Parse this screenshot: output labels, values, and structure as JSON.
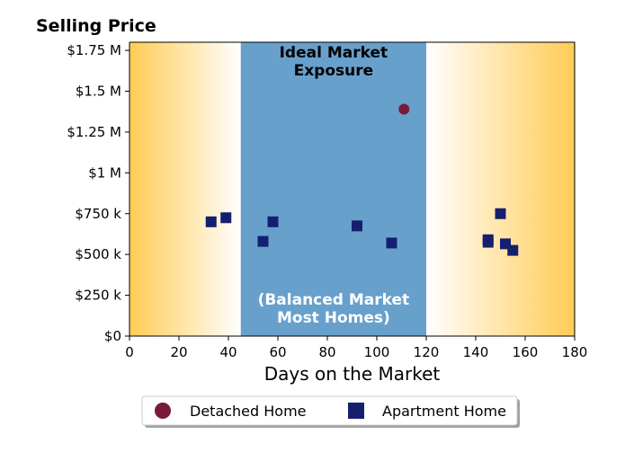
{
  "chart_data": {
    "type": "scatter",
    "title": "Selling Price",
    "xlabel": "Days on the Market",
    "ylabel": "",
    "xlim": [
      0,
      180
    ],
    "ylim": [
      0,
      1800000
    ],
    "x_ticks": [
      0,
      20,
      40,
      60,
      80,
      100,
      120,
      140,
      160,
      180
    ],
    "y_ticks": [
      {
        "value": 0,
        "label": "$0"
      },
      {
        "value": 250000,
        "label": "$250 k"
      },
      {
        "value": 500000,
        "label": "$500 k"
      },
      {
        "value": 750000,
        "label": "$750 k"
      },
      {
        "value": 1000000,
        "label": "$1 M"
      },
      {
        "value": 1250000,
        "label": "$1.25 M"
      },
      {
        "value": 1500000,
        "label": "$1.5 M"
      },
      {
        "value": 1750000,
        "label": "$1.75 M"
      }
    ],
    "grid": false,
    "legend_position": "bottom-center",
    "bands": {
      "ideal": {
        "x_start": 45,
        "x_end": 120,
        "color": "#68a0cc",
        "label_top": [
          "Ideal Market",
          "Exposure"
        ],
        "label_bottom": [
          "(Balanced Market",
          "Most Homes)"
        ]
      },
      "edge_color": "#ffcc55"
    },
    "series": [
      {
        "name": "Detached Home",
        "marker": "circle",
        "color": "#7a1a3a",
        "points": [
          [
            111,
            1390000
          ]
        ]
      },
      {
        "name": "Apartment Home",
        "marker": "square",
        "color": "#14206e",
        "points": [
          [
            33,
            700000
          ],
          [
            39,
            725000
          ],
          [
            54,
            580000
          ],
          [
            58,
            700000
          ],
          [
            92,
            675000
          ],
          [
            106,
            570000
          ],
          [
            145,
            590000
          ],
          [
            145,
            575000
          ],
          [
            150,
            750000
          ],
          [
            152,
            565000
          ],
          [
            155,
            525000
          ]
        ]
      }
    ]
  }
}
